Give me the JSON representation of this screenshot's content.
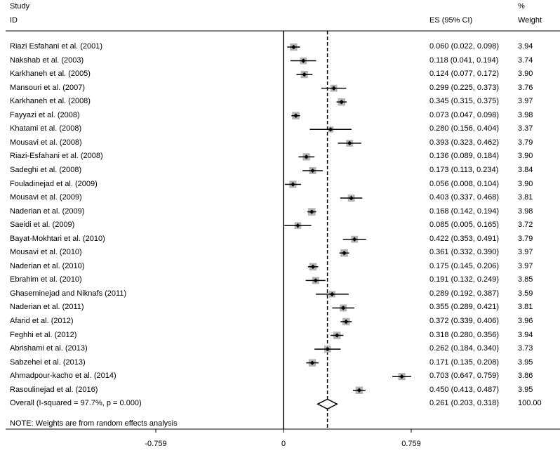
{
  "header": {
    "study_line1": "Study",
    "study_line2": "ID",
    "es_header": "ES (95% CI)",
    "weight_line1": "%",
    "weight_line2": "Weight"
  },
  "note": "NOTE: Weights are from random effects analysis",
  "chart_data": {
    "type": "forest",
    "xlim": [
      -0.759,
      0.759
    ],
    "x_ticks": [
      -0.759,
      0,
      0.759
    ],
    "x_tick_labels": [
      "-0.759",
      "0",
      "0.759"
    ],
    "null_line": 0,
    "overall_line": 0.261,
    "studies": [
      {
        "id": "Riazi Esfahani et al. (2001)",
        "es": 0.06,
        "lo": 0.022,
        "hi": 0.098,
        "es_text": "0.060 (0.022, 0.098)",
        "weight": 3.94,
        "weight_text": "3.94"
      },
      {
        "id": "Nakshab et al. (2003)",
        "es": 0.118,
        "lo": 0.041,
        "hi": 0.194,
        "es_text": "0.118 (0.041, 0.194)",
        "weight": 3.74,
        "weight_text": "3.74"
      },
      {
        "id": "Karkhaneh et al. (2005)",
        "es": 0.124,
        "lo": 0.077,
        "hi": 0.172,
        "es_text": "0.124 (0.077, 0.172)",
        "weight": 3.9,
        "weight_text": "3.90"
      },
      {
        "id": "Mansouri et al. (2007)",
        "es": 0.299,
        "lo": 0.225,
        "hi": 0.373,
        "es_text": "0.299 (0.225, 0.373)",
        "weight": 3.76,
        "weight_text": "3.76"
      },
      {
        "id": "Karkhaneh et al. (2008)",
        "es": 0.345,
        "lo": 0.315,
        "hi": 0.375,
        "es_text": "0.345 (0.315, 0.375)",
        "weight": 3.97,
        "weight_text": "3.97"
      },
      {
        "id": "Fayyazi et al. (2008)",
        "es": 0.073,
        "lo": 0.047,
        "hi": 0.098,
        "es_text": "0.073 (0.047, 0.098)",
        "weight": 3.98,
        "weight_text": "3.98"
      },
      {
        "id": "Khatami et al. (2008)",
        "es": 0.28,
        "lo": 0.156,
        "hi": 0.404,
        "es_text": "0.280 (0.156, 0.404)",
        "weight": 3.37,
        "weight_text": "3.37"
      },
      {
        "id": "Mousavi et al. (2008)",
        "es": 0.393,
        "lo": 0.323,
        "hi": 0.462,
        "es_text": "0.393 (0.323, 0.462)",
        "weight": 3.79,
        "weight_text": "3.79"
      },
      {
        "id": "Riazi-Esfahani et al. (2008)",
        "es": 0.136,
        "lo": 0.089,
        "hi": 0.184,
        "es_text": "0.136 (0.089, 0.184)",
        "weight": 3.9,
        "weight_text": "3.90"
      },
      {
        "id": "Sadeghi et al. (2008)",
        "es": 0.173,
        "lo": 0.113,
        "hi": 0.234,
        "es_text": "0.173 (0.113, 0.234)",
        "weight": 3.84,
        "weight_text": "3.84"
      },
      {
        "id": "Fouladinejad et al. (2009)",
        "es": 0.056,
        "lo": 0.008,
        "hi": 0.104,
        "es_text": "0.056 (0.008, 0.104)",
        "weight": 3.9,
        "weight_text": "3.90"
      },
      {
        "id": "Mousavi et al. (2009)",
        "es": 0.403,
        "lo": 0.337,
        "hi": 0.468,
        "es_text": "0.403 (0.337, 0.468)",
        "weight": 3.81,
        "weight_text": "3.81"
      },
      {
        "id": "Naderian et al. (2009)",
        "es": 0.168,
        "lo": 0.142,
        "hi": 0.194,
        "es_text": "0.168 (0.142, 0.194)",
        "weight": 3.98,
        "weight_text": "3.98"
      },
      {
        "id": "Saeidi et al. (2009)",
        "es": 0.085,
        "lo": 0.005,
        "hi": 0.165,
        "es_text": "0.085 (0.005, 0.165)",
        "weight": 3.72,
        "weight_text": "3.72"
      },
      {
        "id": "Bayat-Mokhtari et al. (2010)",
        "es": 0.422,
        "lo": 0.353,
        "hi": 0.491,
        "es_text": "0.422 (0.353, 0.491)",
        "weight": 3.79,
        "weight_text": "3.79"
      },
      {
        "id": "Mousavi et al. (2010)",
        "es": 0.361,
        "lo": 0.332,
        "hi": 0.39,
        "es_text": "0.361 (0.332, 0.390)",
        "weight": 3.97,
        "weight_text": "3.97"
      },
      {
        "id": "Naderian et al. (2010)",
        "es": 0.175,
        "lo": 0.145,
        "hi": 0.206,
        "es_text": "0.175 (0.145, 0.206)",
        "weight": 3.97,
        "weight_text": "3.97"
      },
      {
        "id": "Ebrahim et al. (2010)",
        "es": 0.191,
        "lo": 0.132,
        "hi": 0.249,
        "es_text": "0.191 (0.132, 0.249)",
        "weight": 3.85,
        "weight_text": "3.85"
      },
      {
        "id": "Ghaseminejad and Niknafs (2011)",
        "es": 0.289,
        "lo": 0.192,
        "hi": 0.387,
        "es_text": "0.289 (0.192, 0.387)",
        "weight": 3.59,
        "weight_text": "3.59"
      },
      {
        "id": "Naderian et al. (2011)",
        "es": 0.355,
        "lo": 0.289,
        "hi": 0.421,
        "es_text": "0.355 (0.289, 0.421)",
        "weight": 3.81,
        "weight_text": "3.81"
      },
      {
        "id": "Afarid et al. (2012)",
        "es": 0.372,
        "lo": 0.339,
        "hi": 0.406,
        "es_text": "0.372 (0.339, 0.406)",
        "weight": 3.96,
        "weight_text": "3.96"
      },
      {
        "id": "Feghhi et al. (2012)",
        "es": 0.318,
        "lo": 0.28,
        "hi": 0.356,
        "es_text": "0.318 (0.280, 0.356)",
        "weight": 3.94,
        "weight_text": "3.94"
      },
      {
        "id": "Abrishami et al. (2013)",
        "es": 0.262,
        "lo": 0.184,
        "hi": 0.34,
        "es_text": "0.262 (0.184, 0.340)",
        "weight": 3.73,
        "weight_text": "3.73"
      },
      {
        "id": "Sabzehei et al. (2013)",
        "es": 0.171,
        "lo": 0.135,
        "hi": 0.208,
        "es_text": "0.171 (0.135, 0.208)",
        "weight": 3.95,
        "weight_text": "3.95"
      },
      {
        "id": "Ahmadpour-kacho et al. (2014)",
        "es": 0.703,
        "lo": 0.647,
        "hi": 0.759,
        "es_text": "0.703 (0.647, 0.759)",
        "weight": 3.86,
        "weight_text": "3.86"
      },
      {
        "id": "Rasoulinejad et al. (2016)",
        "es": 0.45,
        "lo": 0.413,
        "hi": 0.487,
        "es_text": "0.450 (0.413, 0.487)",
        "weight": 3.95,
        "weight_text": "3.95"
      }
    ],
    "overall": {
      "id": "Overall  (I-squared = 97.7%, p = 0.000)",
      "es": 0.261,
      "lo": 0.203,
      "hi": 0.318,
      "es_text": "0.261 (0.203, 0.318)",
      "weight_text": "100.00"
    },
    "colors": {
      "marker_box": "#b4b4b4",
      "marker": "#000000",
      "line": "#000000"
    }
  }
}
